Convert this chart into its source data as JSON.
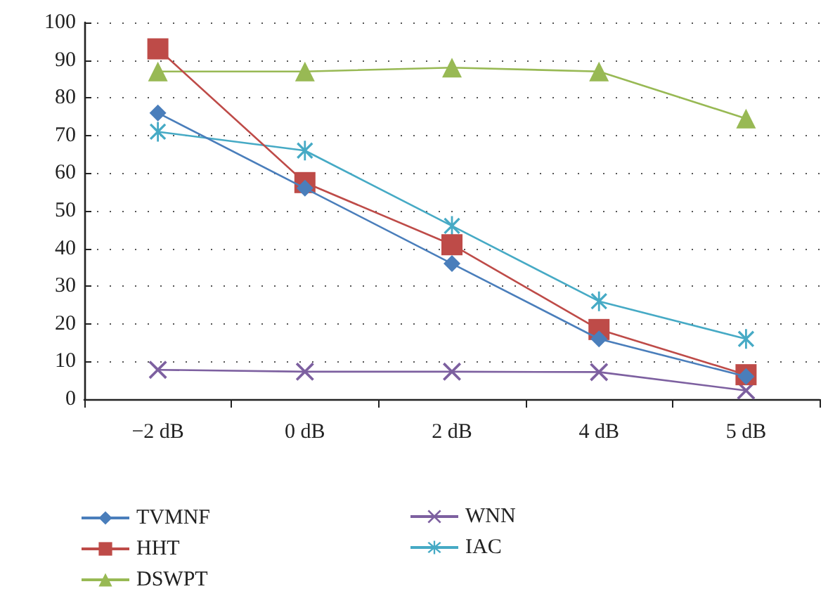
{
  "chart_data": {
    "type": "line",
    "categories": [
      "−2 dB",
      "0 dB",
      "2 dB",
      "4 dB",
      "5 dB"
    ],
    "series": [
      {
        "name": "TVMNF",
        "color": "#4a7ebb",
        "marker": "diamond",
        "values": [
          76,
          56,
          36,
          16,
          6
        ]
      },
      {
        "name": "HHT",
        "color": "#be4b48",
        "marker": "square",
        "values": [
          93,
          57.5,
          41,
          18.5,
          6.5
        ]
      },
      {
        "name": "DSWPT",
        "color": "#98b954",
        "marker": "triangle",
        "values": [
          87,
          87,
          88,
          87,
          74.5
        ]
      },
      {
        "name": "WNN",
        "color": "#7d60a0",
        "marker": "cross",
        "values": [
          7.8,
          7.3,
          7.3,
          7.2,
          2.3
        ]
      },
      {
        "name": "IAC",
        "color": "#46aac5",
        "marker": "star",
        "values": [
          71,
          66,
          46,
          26,
          16
        ]
      }
    ],
    "ylim": [
      0,
      100
    ],
    "yticks": [
      0,
      10,
      20,
      30,
      40,
      50,
      60,
      70,
      80,
      90,
      100
    ],
    "grid": "y",
    "legend": "bottom"
  }
}
